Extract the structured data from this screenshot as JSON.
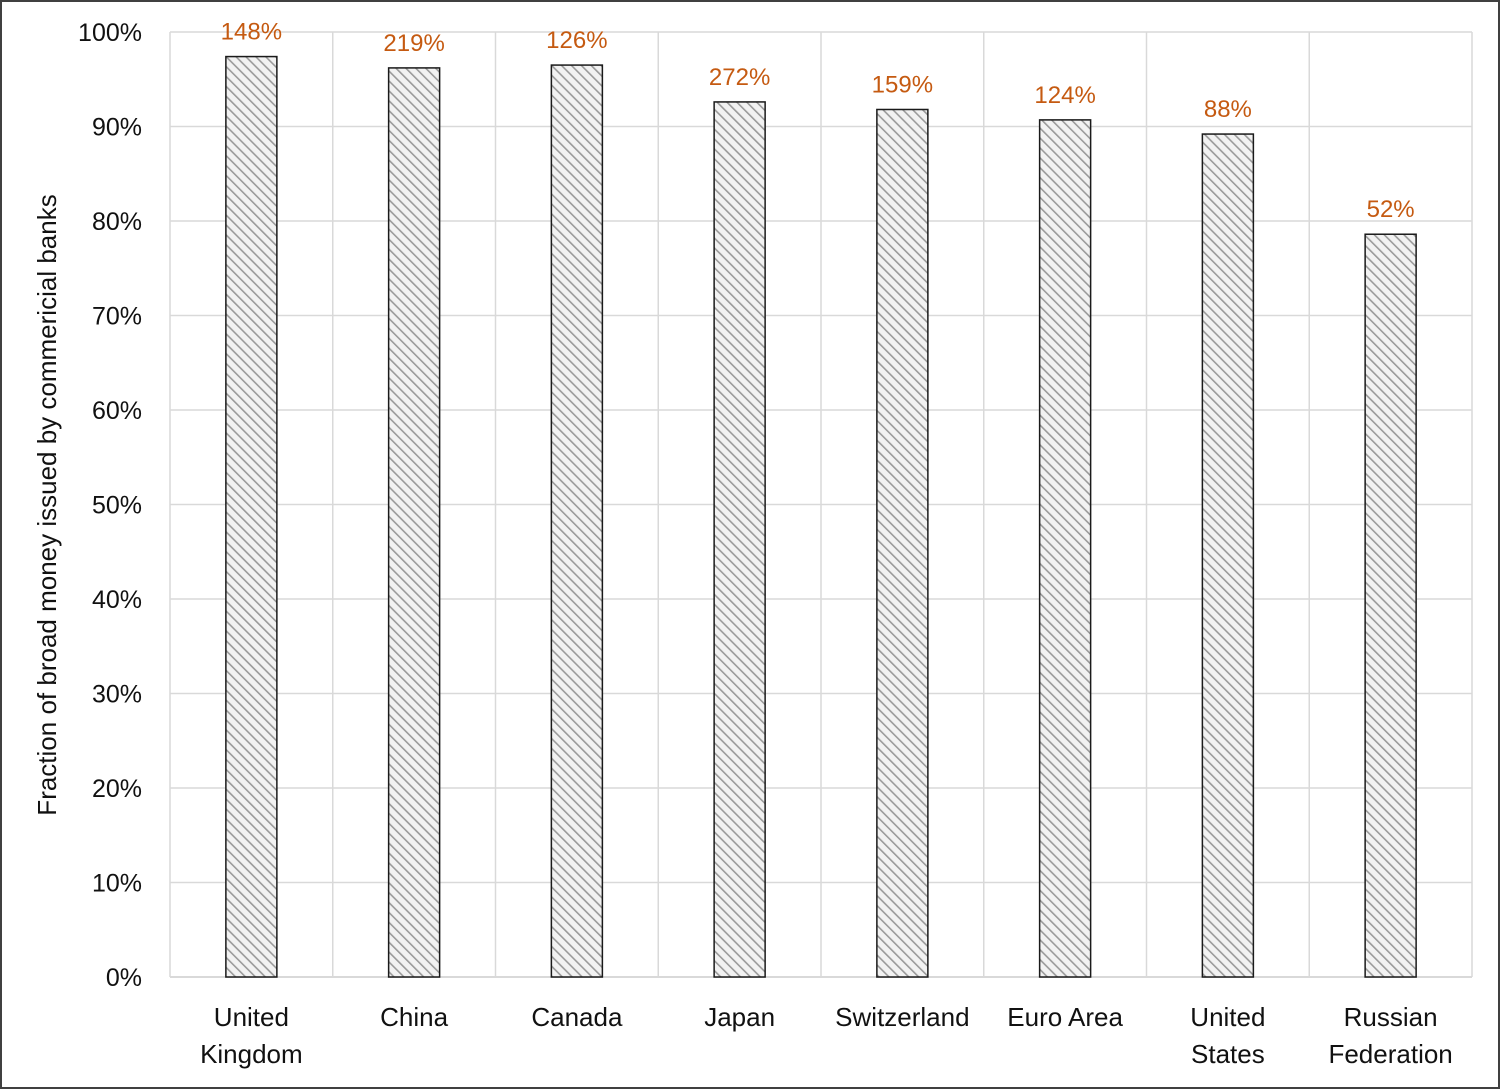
{
  "chart_data": {
    "type": "bar",
    "title": "",
    "xlabel": "",
    "ylabel": "Fraction of broad money issued by commericial banks",
    "categories": [
      [
        "United",
        "Kingdom"
      ],
      [
        "China"
      ],
      [
        "Canada"
      ],
      [
        "Japan"
      ],
      [
        "Switzerland"
      ],
      [
        "Euro Area"
      ],
      [
        "United",
        "States"
      ],
      [
        "Russian",
        "Federation"
      ]
    ],
    "values": [
      97.4,
      96.2,
      96.5,
      92.6,
      91.8,
      90.7,
      89.2,
      78.6
    ],
    "annotations": [
      "148%",
      "219%",
      "126%",
      "272%",
      "159%",
      "124%",
      "88%",
      "52%"
    ],
    "ylim": [
      0,
      100
    ],
    "yticks": [
      0,
      10,
      20,
      30,
      40,
      50,
      60,
      70,
      80,
      90,
      100
    ],
    "ytick_labels": [
      "0%",
      "10%",
      "20%",
      "30%",
      "40%",
      "50%",
      "60%",
      "70%",
      "80%",
      "90%",
      "100%"
    ],
    "grid": true,
    "legend": "none",
    "colors": {
      "bar_fill_light": "#f2f2f2",
      "bar_fill_stripe": "#9a9a9a",
      "bar_outline": "#1a1a1a",
      "annotation": "#c55a11",
      "grid": "#d9d9d9",
      "frame": "#404040"
    }
  }
}
